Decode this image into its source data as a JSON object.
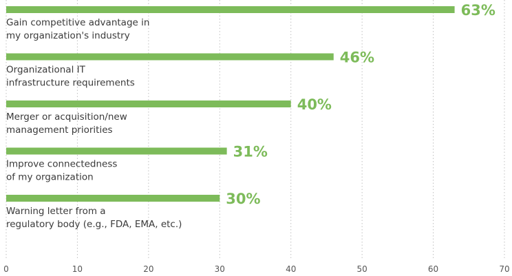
{
  "chart_data": {
    "type": "bar",
    "orientation": "horizontal",
    "categories": [
      [
        "Gain competitive advantage in",
        "my organization's industry"
      ],
      [
        "Organizational IT",
        "infrastructure requirements"
      ],
      [
        "Merger or acquisition/new",
        "management priorities"
      ],
      [
        "Improve connectedness",
        "of my organization"
      ],
      [
        "Warning letter from a",
        "regulatory body (e.g., FDA, EMA, etc.)"
      ]
    ],
    "values": [
      63,
      46,
      40,
      31,
      30
    ],
    "value_labels": [
      "63%",
      "46%",
      "40%",
      "31%",
      "30%"
    ],
    "xlim": [
      0,
      70
    ],
    "xticks": [
      0,
      10,
      20,
      30,
      40,
      50,
      60,
      70
    ],
    "grid": true,
    "bar_color": "#7dbb5a",
    "label_color": "#7dbb5a",
    "grid_color": "#bfbfbf",
    "title": "",
    "xlabel": "",
    "ylabel": ""
  }
}
